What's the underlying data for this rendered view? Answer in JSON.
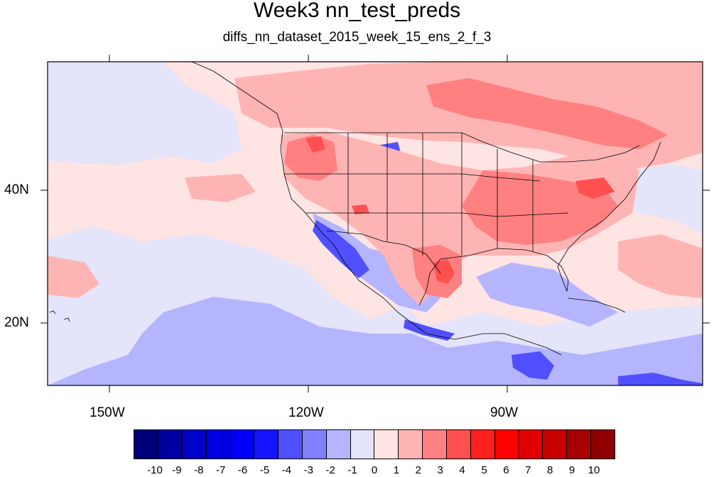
{
  "title": "Week3 nn_test_preds",
  "subtitle": "diffs_nn_dataset_2015_week_15_ens_2_f_3",
  "axes": {
    "lon_ticks": [
      "150W",
      "120W",
      "90W"
    ],
    "lat_ticks": [
      "40N",
      "20N"
    ]
  },
  "legend": {
    "labels": [
      "-10",
      "-9",
      "-8",
      "-7",
      "-6",
      "-5",
      "-4",
      "-3",
      "-2",
      "-1",
      "0",
      "1",
      "2",
      "3",
      "4",
      "5",
      "6",
      "7",
      "8",
      "9",
      "10"
    ],
    "colors": [
      "#00007a",
      "#0000a0",
      "#0000c8",
      "#0000e0",
      "#0000f8",
      "#1414ff",
      "#5050ff",
      "#8080ff",
      "#b4b4ff",
      "#e4e4fa",
      "#ffe4e4",
      "#ffb4b4",
      "#ff8080",
      "#ff5050",
      "#ff2020",
      "#ff0000",
      "#e00000",
      "#c80000",
      "#a80000",
      "#900000",
      "#7a0000"
    ]
  },
  "colors": {
    "ocean_background": "#ffe4e4",
    "light_blue": "#e4e4fa",
    "blue": "#b4b4ff",
    "pink": "#ffb4b4",
    "salmon": "#ff8080",
    "red": "#ff5050",
    "dark_blue": "#5050ff"
  }
}
